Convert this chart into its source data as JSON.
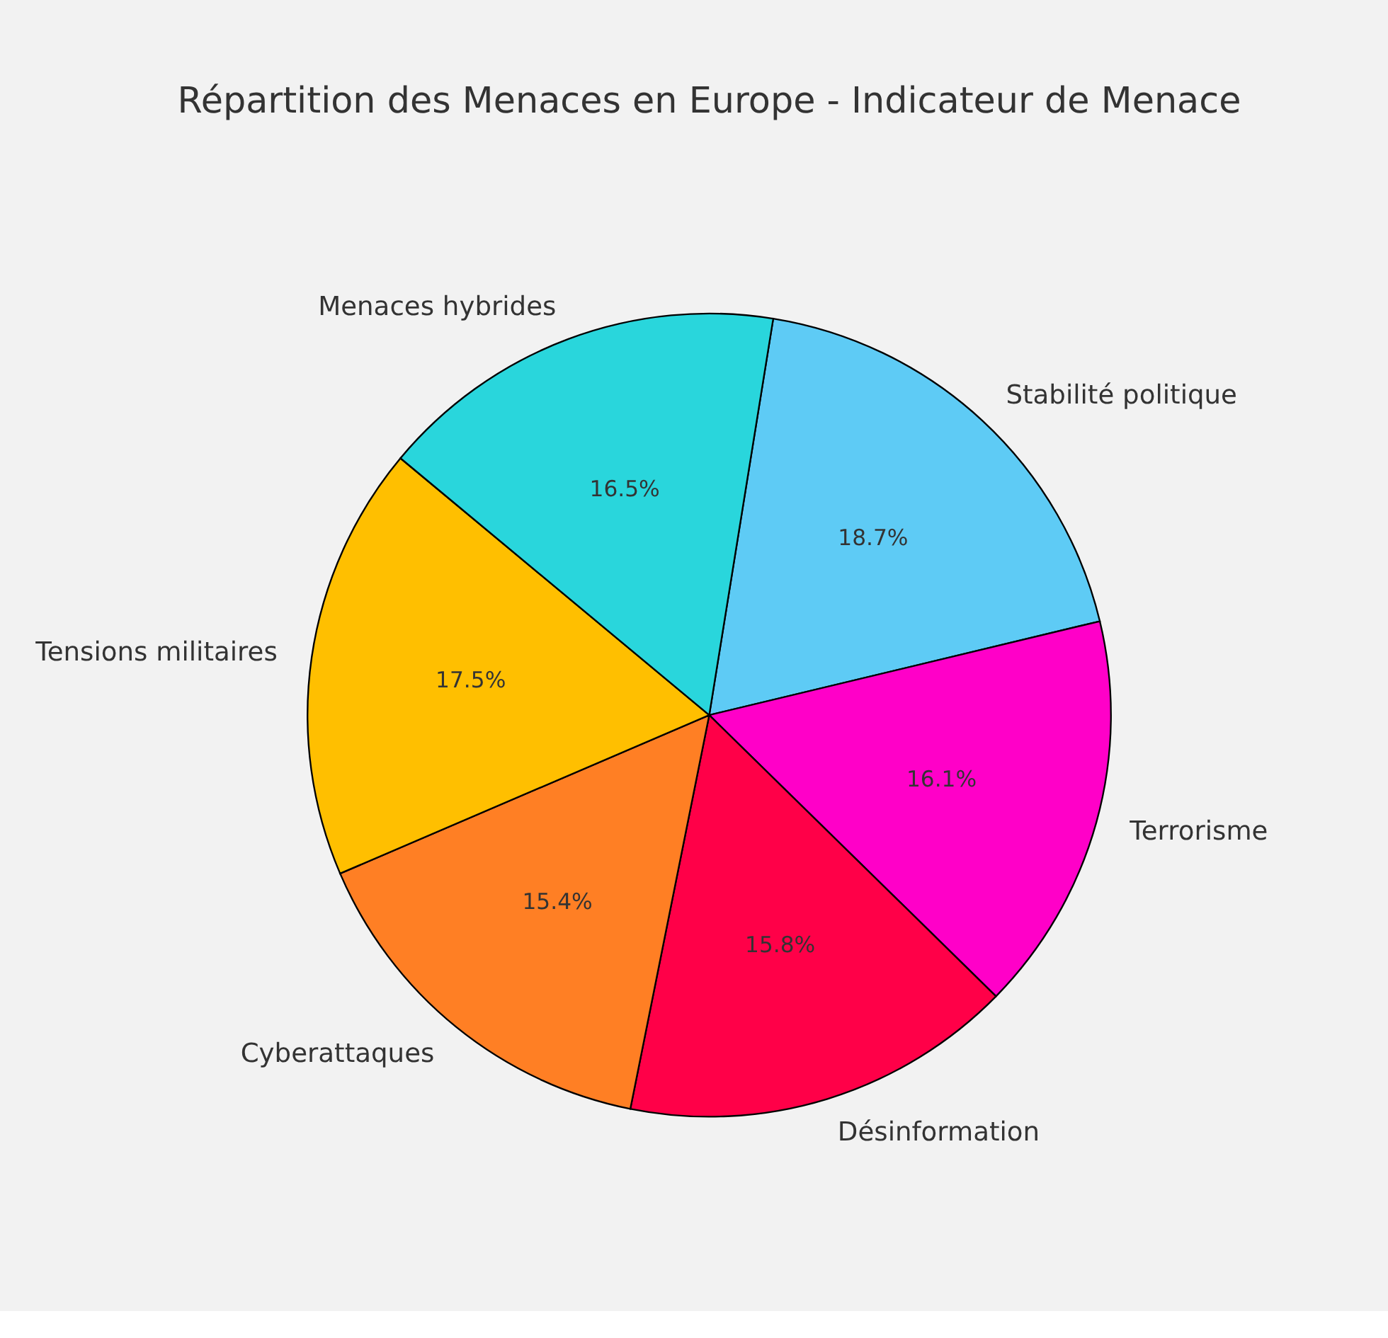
{
  "chart_data": {
    "type": "pie",
    "title": "Répartition des Menaces en Europe - Indicateur de Menace",
    "categories": [
      "Stabilité politique",
      "Terrorisme",
      "Désinformation",
      "Cyberattaques",
      "Tensions militaires",
      "Menaces hybrides"
    ],
    "values": [
      18.7,
      16.1,
      15.8,
      15.4,
      17.5,
      16.5
    ],
    "value_labels": [
      "18.7%",
      "16.1%",
      "15.8%",
      "15.4%",
      "17.5%",
      "16.5%"
    ],
    "colors": [
      "#5ecbf5",
      "#ff00c8",
      "#ff0048",
      "#ff7f24",
      "#ffbf00",
      "#29d6dc"
    ],
    "legend": false
  }
}
